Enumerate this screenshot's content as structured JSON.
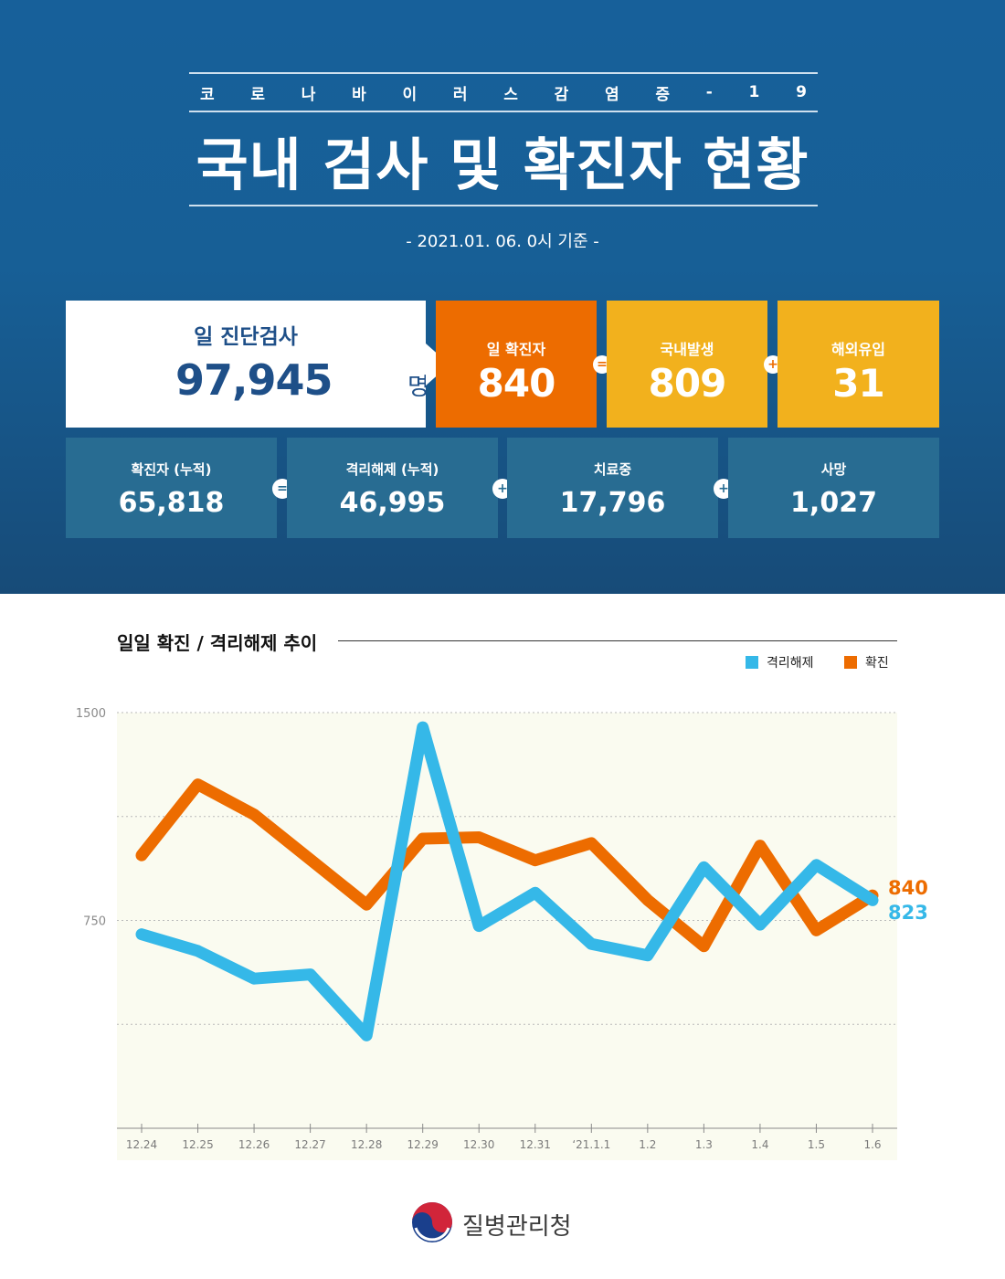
{
  "header": {
    "subtitle_chars": [
      "코",
      "로",
      "나",
      "바",
      "이",
      "러",
      "스",
      "감",
      "염",
      "증",
      "-",
      "1",
      "9"
    ],
    "title": "국내 검사 및 확진자 현황",
    "date": "- 2021.01. 06. 0시 기준 -"
  },
  "tests": {
    "label": "일 진단검사",
    "value": "97,945",
    "unit": "명"
  },
  "daily": {
    "confirmed": {
      "label": "일 확진자",
      "value": "840"
    },
    "op1": "=",
    "domestic": {
      "label": "국내발생",
      "value": "809"
    },
    "op2": "+",
    "overseas": {
      "label": "해외유입",
      "value": "31"
    }
  },
  "cumulative": {
    "confirmed": {
      "label": "확진자 (누적)",
      "value": "65,818"
    },
    "op1": "=",
    "released": {
      "label": "격리해제 (누적)",
      "value": "46,995"
    },
    "op2": "+",
    "treating": {
      "label": "치료중",
      "value": "17,796"
    },
    "op3": "+",
    "deaths": {
      "label": "사망",
      "value": "1,027"
    }
  },
  "colors": {
    "confirm": "#ed6c00",
    "release": "#35b8e8",
    "yellow": "#f2b11d",
    "navy": "#1e4f88",
    "chart_bg": "#fafbf0"
  },
  "chart_data": {
    "type": "line",
    "title": "일일 확진 / 격리해제 추이",
    "categories": [
      "12.24",
      "12.25",
      "12.26",
      "12.27",
      "12.28",
      "12.29",
      "12.30",
      "12.31",
      "‘21.1.1",
      "1.2",
      "1.3",
      "1.4",
      "1.5",
      "1.6"
    ],
    "series": [
      {
        "name": "격리해제",
        "color": "#35b8e8",
        "values": [
          700,
          640,
          540,
          555,
          335,
          1447,
          730,
          850,
          665,
          624,
          942,
          735,
          950,
          823
        ]
      },
      {
        "name": "확진",
        "color": "#ed6c00",
        "values": [
          985,
          1241,
          1132,
          970,
          807,
          1045,
          1050,
          967,
          1029,
          824,
          657,
          1020,
          714,
          840
        ]
      }
    ],
    "yticks": [
      1500,
      750
    ],
    "ylim": [
      0,
      1500
    ],
    "end_labels": {
      "확진": "840",
      "격리해제": "823"
    },
    "legend_position": "top-right",
    "grid": true
  },
  "footer": {
    "org": "질병관리청",
    "logo": "taegeuk-logo"
  }
}
